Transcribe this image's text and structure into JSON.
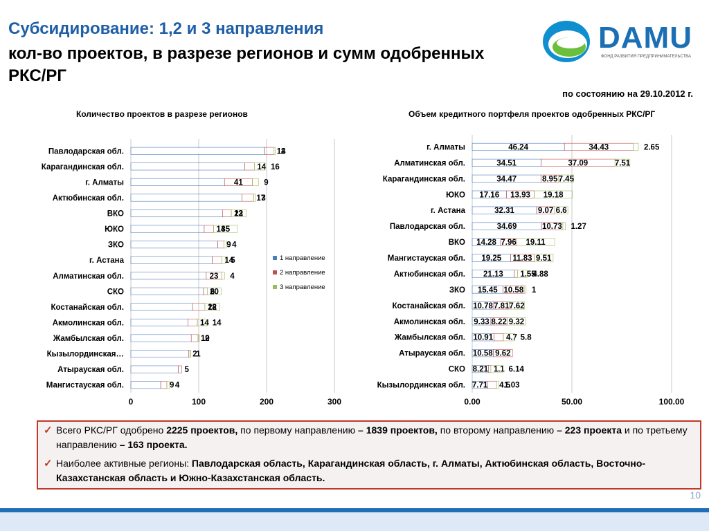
{
  "header": {
    "title_line1": "Субсидирование: 1,2 и 3 направления",
    "title_line2": "кол-во проектов, в разрезе регионов и сумм одобренных РКС/РГ",
    "logo_text": "DAMU",
    "logo_subtext": "ФОНД РАЗВИТИЯ ПРЕДПРИНИМАТЕЛЬСТВА",
    "as_of": "по состоянию на 29.10.2012 г."
  },
  "chart_data": [
    {
      "type": "bar",
      "orientation": "horizontal",
      "stacked": true,
      "title": "Количество проектов в разрезе регионов",
      "categories": [
        "Павлодарская обл.",
        "Карагандинская обл.",
        "г. Алматы",
        "Актюбинская обл.",
        "ВКО",
        "ЮКО",
        "ЗКО",
        "г. Астана",
        "Алматинская обл.",
        "СКО",
        "Костанайская обл.",
        "Акмолинская обл.",
        "Жамбылская обл.",
        "Кызылординская…",
        "Атырауская обл.",
        "Мангистауская обл."
      ],
      "series": [
        {
          "name": "1 направление",
          "values": [
            197,
            168,
            138,
            164,
            135,
            108,
            128,
            120,
            111,
            107,
            91,
            84,
            89,
            85,
            70,
            44
          ]
        },
        {
          "name": "2 направление",
          "values": [
            14,
            14,
            41,
            17,
            13,
            14,
            9,
            14,
            23,
            6,
            18,
            14,
            10,
            2,
            5,
            9
          ]
        },
        {
          "name": "3 направление",
          "values": [
            2,
            16,
            9,
            3,
            22,
            35,
            4,
            5,
            4,
            20,
            22,
            14,
            2,
            1,
            null,
            4
          ]
        }
      ],
      "xlim": [
        0,
        300
      ],
      "xticks": [
        "0",
        "100",
        "200",
        "300"
      ],
      "legend_position": "right",
      "colors": [
        "#4a7ebf",
        "#c0504d",
        "#9bbb59"
      ]
    },
    {
      "type": "bar",
      "orientation": "horizontal",
      "stacked": true,
      "title": "Объем кредитного портфеля проектов одобренных РКС/РГ",
      "categories": [
        "г. Алматы",
        "Алматинская обл.",
        "Карагандинская обл.",
        "ЮКО",
        "г. Астана",
        "Павлодарская обл.",
        "ВКО",
        "Мангистауская обл.",
        "Актюбинская обл.",
        "ЗКО",
        "Костанайская обл.",
        "Акмолинская обл.",
        "Жамбылская обл.",
        "Атырауская обл.",
        "СКО",
        "Кызылординская обл."
      ],
      "series": [
        {
          "name": "1 направление",
          "values": [
            46.24,
            34.51,
            34.47,
            17.16,
            32.31,
            34.69,
            14.28,
            19.25,
            21.13,
            15.45,
            10.78,
            9.33,
            10.91,
            10.58,
            8.21,
            7.71
          ]
        },
        {
          "name": "2 направление",
          "values": [
            34.43,
            37.09,
            8.95,
            13.93,
            9.07,
            10.73,
            7.96,
            11.83,
            1.55,
            10.58,
            7.81,
            8.22,
            4.7,
            9.62,
            1.1,
            4.5
          ]
        },
        {
          "name": "3 направление",
          "values": [
            2.65,
            7.51,
            7.45,
            19.18,
            6.6,
            1.27,
            19.11,
            9.51,
            4.88,
            1.0,
            7.62,
            9.32,
            5.8,
            null,
            6.14,
            1.03
          ]
        }
      ],
      "xlim": [
        0,
        100
      ],
      "xticks": [
        "0.00",
        "50.00",
        "100.00"
      ],
      "colors": [
        "#4a7ebf",
        "#c0504d",
        "#9bbb59"
      ]
    }
  ],
  "info": {
    "b1_p1": "Всего РКС/РГ одобрено ",
    "b1_p2": "2225 проектов,",
    "b1_p3": " по первому направлению ",
    "b1_p4": "– 1839 проектов,",
    "b1_p5": " по второму направлению ",
    "b1_p6": "– 223 проекта",
    "b1_p7": " и по третьему направлению ",
    "b1_p8": "– 163 проекта.",
    "b2_p1": "Наиболее активные регионы: ",
    "b2_p2": "Павлодарская область, Карагандинская область, г. Алматы, Актюбинская область, Восточно-Казахстанская область и Южно-Казахстанская область."
  },
  "footer": {
    "page_number": "10"
  }
}
